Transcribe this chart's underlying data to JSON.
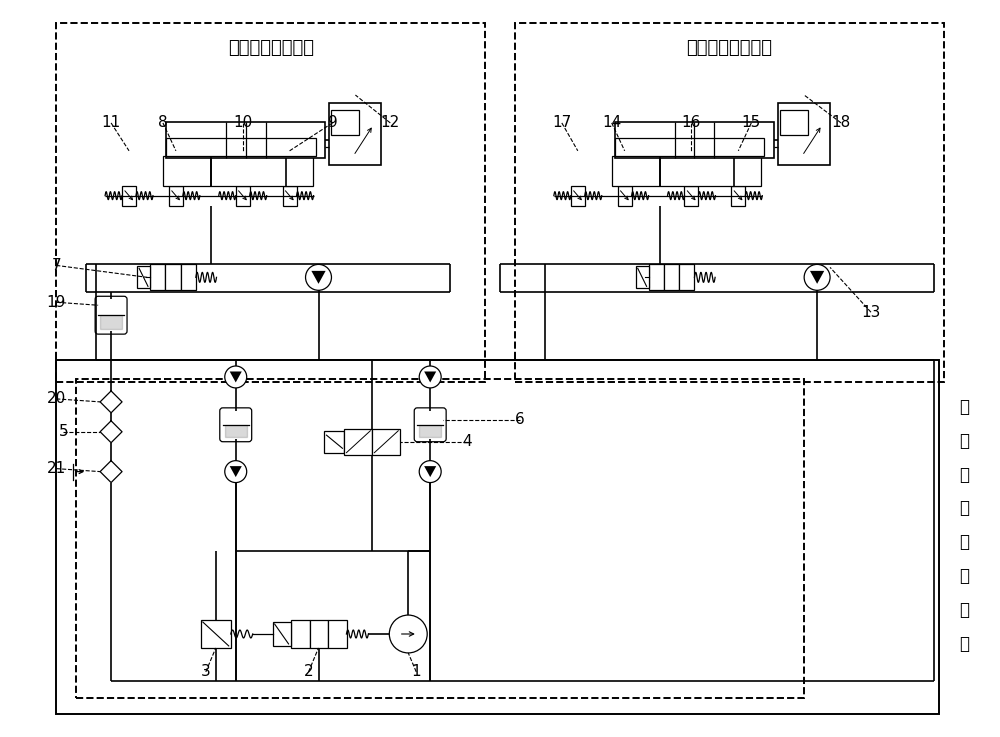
{
  "figsize": [
    10.0,
    7.37
  ],
  "dpi": 100,
  "unit1_label": "第一液压驱动单元",
  "unit2_label": "第二液压驱动单元",
  "supply_chars": [
    "液",
    "压",
    "两",
    "级",
    "油",
    "源",
    "单",
    "元"
  ],
  "bg_color": "#ffffff"
}
